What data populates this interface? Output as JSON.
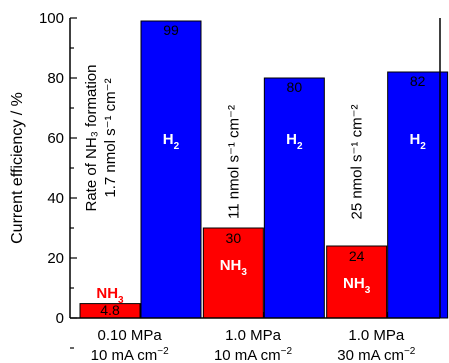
{
  "chart_data": {
    "type": "bar",
    "ylabel": "Current efficiency / %",
    "ylim": [
      0,
      100
    ],
    "yticks": [
      0,
      20,
      40,
      60,
      80,
      100
    ],
    "categories": [
      {
        "line1": "0.10 MPa",
        "line2": "10 mA cm",
        "line2_sup": "−2"
      },
      {
        "line1": "1.0 MPa",
        "line2": "10 mA cm",
        "line2_sup": "−2"
      },
      {
        "line1": "1.0 MPa",
        "line2": "30 mA cm",
        "line2_sup": "−2"
      }
    ],
    "series": [
      {
        "base": "NH",
        "sub": "3",
        "color": "#ff0000",
        "values": [
          4.8,
          30,
          24
        ],
        "value_labels": [
          "4.8",
          "30",
          "24"
        ]
      },
      {
        "base": "H",
        "sub": "2",
        "color": "#0000ff",
        "values": [
          99,
          80,
          82
        ],
        "value_labels": [
          "99",
          "80",
          "82"
        ]
      }
    ],
    "annotations": [
      {
        "lines": [
          "Rate of NH₃ formation",
          "1.7 nmol s⁻¹ cm⁻²"
        ]
      },
      {
        "lines": [
          "11 nmol s⁻¹ cm⁻²"
        ]
      },
      {
        "lines": [
          "25 nmol s⁻¹ cm⁻²"
        ]
      }
    ],
    "grid": false,
    "legend": "none"
  }
}
